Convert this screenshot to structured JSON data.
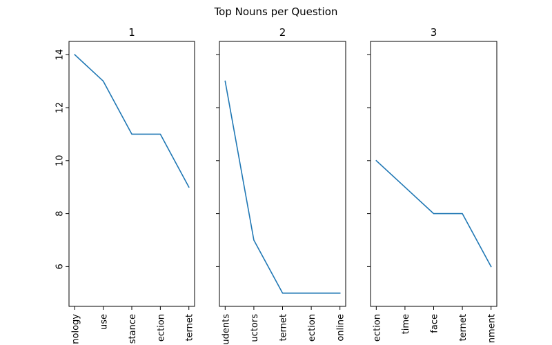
{
  "figure": {
    "title": "Top Nouns per Question"
  },
  "chart_data": [
    {
      "type": "line",
      "title": "1",
      "categories": [
        "nology",
        "use",
        "stance",
        "ection",
        "ternet"
      ],
      "values": [
        14,
        13,
        11,
        11,
        9
      ],
      "yticks": [
        6,
        8,
        10,
        12,
        14
      ],
      "ylim": [
        4.5,
        14.5
      ],
      "color": "#1f77b4",
      "grid": false
    },
    {
      "type": "line",
      "title": "2",
      "categories": [
        "udents",
        "uctors",
        "ternet",
        "ection",
        "online"
      ],
      "values": [
        13,
        7,
        5,
        5,
        5
      ],
      "yticks": [
        6,
        8,
        10,
        12,
        14
      ],
      "ylim": [
        4.5,
        14.5
      ],
      "color": "#1f77b4",
      "grid": false
    },
    {
      "type": "line",
      "title": "3",
      "categories": [
        "ection",
        "time",
        "face",
        "ternet",
        "nment"
      ],
      "values": [
        10,
        9,
        8,
        8,
        6
      ],
      "yticks": [
        6,
        8,
        10,
        12,
        14
      ],
      "ylim": [
        4.5,
        14.5
      ],
      "color": "#1f77b4",
      "grid": false
    }
  ]
}
